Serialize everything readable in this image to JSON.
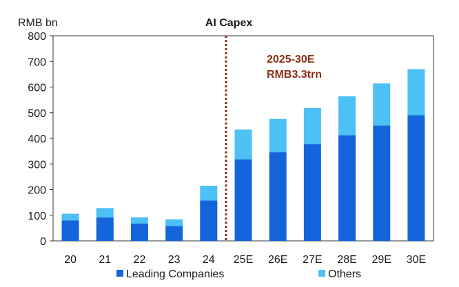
{
  "chart_data": {
    "type": "bar",
    "stacked": true,
    "title": "AI Capex",
    "ylabel": "RMB bn",
    "xlabel": "",
    "ylim": [
      0,
      800
    ],
    "yticks": [
      0,
      100,
      200,
      300,
      400,
      500,
      600,
      700,
      800
    ],
    "categories": [
      "20",
      "21",
      "22",
      "23",
      "24",
      "25E",
      "26E",
      "27E",
      "28E",
      "29E",
      "30E"
    ],
    "series": [
      {
        "name": "Leading Companies",
        "values": [
          80,
          92,
          68,
          58,
          157,
          318,
          346,
          378,
          412,
          450,
          490
        ]
      },
      {
        "name": "Others",
        "values": [
          26,
          36,
          24,
          26,
          58,
          116,
          130,
          140,
          152,
          164,
          180
        ]
      }
    ],
    "grid": false,
    "legend_position": "bottom",
    "annotations": [
      {
        "text_lines": [
          "2025-30E",
          "RMB3.3trn"
        ],
        "color": "#8b2e14"
      }
    ],
    "divider_after_category": "24",
    "colors": {
      "leading": "#1464dc",
      "others": "#4dc0f5",
      "divider": "#8b2e14"
    }
  }
}
